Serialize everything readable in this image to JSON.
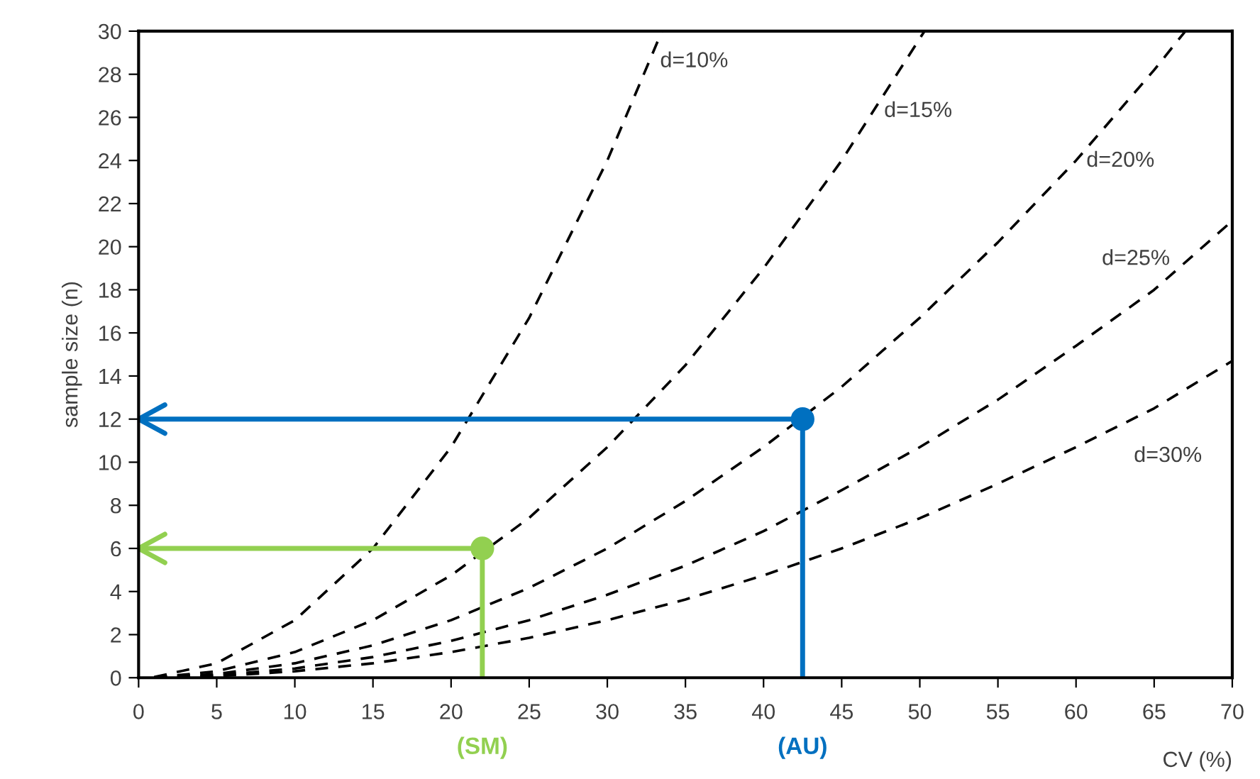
{
  "chart_data": {
    "type": "line",
    "xlabel": "CV (%)",
    "ylabel": "sample size (n)",
    "xlim": [
      0,
      70
    ],
    "ylim": [
      0,
      30
    ],
    "xticks": [
      0,
      5,
      10,
      15,
      20,
      25,
      30,
      35,
      40,
      45,
      50,
      55,
      60,
      65,
      70
    ],
    "yticks": [
      0,
      2,
      4,
      6,
      8,
      10,
      12,
      14,
      16,
      18,
      20,
      22,
      24,
      26,
      28,
      30
    ],
    "grid": false,
    "legend": false,
    "series": [
      {
        "name": "d=10%",
        "color": "#000000",
        "line_style": "dashed",
        "x": [
          1,
          5,
          10,
          15,
          20,
          25,
          30,
          33.5
        ],
        "values": [
          0.03,
          0.67,
          2.67,
          6.0,
          10.7,
          16.7,
          24.0,
          30.0
        ]
      },
      {
        "name": "d=15%",
        "color": "#000000",
        "line_style": "dashed",
        "x": [
          1,
          5,
          10,
          15,
          20,
          25,
          30,
          35,
          40,
          45,
          50.3
        ],
        "values": [
          0.01,
          0.3,
          1.19,
          2.67,
          4.75,
          7.42,
          10.7,
          14.5,
          19.0,
          24.0,
          30.0
        ]
      },
      {
        "name": "d=20%",
        "color": "#000000",
        "line_style": "dashed",
        "x": [
          1,
          5,
          10,
          15,
          20,
          25,
          30,
          35,
          40,
          45,
          50,
          55,
          60,
          65,
          67
        ],
        "values": [
          0.01,
          0.17,
          0.67,
          1.5,
          2.67,
          4.17,
          6.0,
          8.2,
          10.7,
          13.5,
          16.7,
          20.2,
          24.0,
          28.2,
          30.0
        ]
      },
      {
        "name": "d=25%",
        "color": "#000000",
        "line_style": "dashed",
        "x": [
          1,
          5,
          10,
          15,
          20,
          25,
          30,
          35,
          40,
          45,
          50,
          55,
          60,
          65,
          70
        ],
        "values": [
          0.0,
          0.11,
          0.43,
          0.96,
          1.71,
          2.67,
          3.85,
          5.2,
          6.8,
          8.7,
          10.7,
          12.9,
          15.4,
          18.0,
          21.2
        ]
      },
      {
        "name": "d=30%",
        "color": "#000000",
        "line_style": "dashed",
        "x": [
          1,
          5,
          10,
          15,
          20,
          25,
          30,
          35,
          40,
          45,
          50,
          55,
          60,
          65,
          70
        ],
        "values": [
          0.0,
          0.07,
          0.3,
          0.67,
          1.19,
          1.85,
          2.67,
          3.63,
          4.75,
          6.0,
          7.4,
          9.0,
          10.7,
          12.5,
          14.7
        ]
      },
      {
        "color": "#0070c0",
        "line_style": "solid",
        "x": [
          0,
          42.5,
          42.5
        ],
        "values": [
          12,
          12,
          0
        ]
      },
      {
        "color": "#92d050",
        "line_style": "solid",
        "x": [
          0,
          22,
          22
        ],
        "values": [
          6,
          6,
          0
        ]
      },
      {
        "type": "scatter",
        "color": "#0070c0",
        "marker": "circle",
        "x": [
          42.5
        ],
        "values": [
          12
        ]
      },
      {
        "type": "scatter",
        "color": "#92d050",
        "marker": "circle",
        "x": [
          22
        ],
        "values": [
          6
        ]
      }
    ],
    "annotations": [
      {
        "text": "(SM)",
        "x": 22,
        "y": 0
      },
      {
        "text": "(AU)",
        "x": 42.5,
        "y": 0
      }
    ]
  }
}
